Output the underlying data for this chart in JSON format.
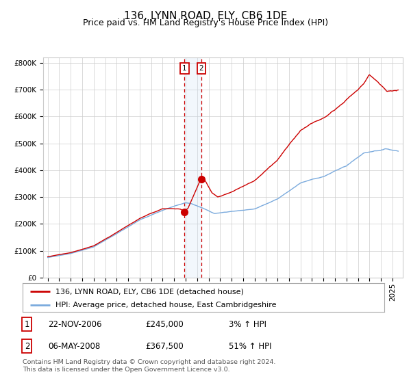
{
  "title": "136, LYNN ROAD, ELY, CB6 1DE",
  "subtitle": "Price paid vs. HM Land Registry's House Price Index (HPI)",
  "legend_line1": "136, LYNN ROAD, ELY, CB6 1DE (detached house)",
  "legend_line2": "HPI: Average price, detached house, East Cambridgeshire",
  "annotation1_date": "22-NOV-2006",
  "annotation1_price": "£245,000",
  "annotation1_hpi": "3% ↑ HPI",
  "annotation2_date": "06-MAY-2008",
  "annotation2_price": "£367,500",
  "annotation2_hpi": "51% ↑ HPI",
  "footer": "Contains HM Land Registry data © Crown copyright and database right 2024.\nThis data is licensed under the Open Government Licence v3.0.",
  "hpi_color": "#7aaadd",
  "price_color": "#cc0000",
  "marker_color": "#cc0000",
  "vspan_color": "#cce0f5",
  "vline_color": "#cc0000",
  "grid_color": "#cccccc",
  "background_color": "#ffffff",
  "ylim": [
    0,
    820000
  ],
  "yticks": [
    0,
    100000,
    200000,
    300000,
    400000,
    500000,
    600000,
    700000,
    800000
  ],
  "ytick_labels": [
    "£0",
    "£100K",
    "£200K",
    "£300K",
    "£400K",
    "£500K",
    "£600K",
    "£700K",
    "£800K"
  ],
  "sale1_x": 2006.9,
  "sale1_y": 245000,
  "sale2_x": 2008.37,
  "sale2_y": 367500,
  "xlim_left": 1994.6,
  "xlim_right": 2025.9
}
